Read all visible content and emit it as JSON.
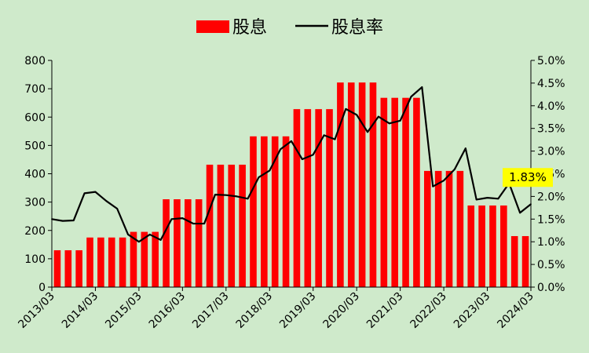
{
  "chart_data": {
    "type": "bar+line",
    "legend": {
      "bar_label": "股息",
      "line_label": "股息率",
      "position": "top-center"
    },
    "colors": {
      "background": "#cfeacb",
      "bar": "#ff0000",
      "line": "#000000",
      "annotation_bg": "#ffff00"
    },
    "y_left": {
      "ylim": [
        0,
        800
      ],
      "ticks": [
        "0",
        "100",
        "200",
        "300",
        "400",
        "500",
        "600",
        "700",
        "800"
      ]
    },
    "y_right": {
      "ylim": [
        0,
        5
      ],
      "ticks": [
        "0.0%",
        "0.5%",
        "1.0%",
        "1.5%",
        "2.0%",
        "2.5%",
        "3.0%",
        "3.5%",
        "4.0%",
        "4.5%",
        "5.0%"
      ]
    },
    "x_tick_labels": [
      "2013/03",
      "2014/03",
      "2015/03",
      "2016/03",
      "2017/03",
      "2018/03",
      "2019/03",
      "2020/03",
      "2021/03",
      "2022/03",
      "2023/03",
      "2024/03"
    ],
    "grid": false,
    "series": [
      {
        "name": "股息",
        "type": "bar",
        "values": [
          130,
          130,
          130,
          175,
          175,
          175,
          175,
          195,
          195,
          195,
          310,
          310,
          310,
          310,
          432,
          432,
          432,
          432,
          532,
          532,
          532,
          532,
          628,
          628,
          628,
          628,
          722,
          722,
          722,
          722,
          668,
          668,
          668,
          668,
          410,
          410,
          410,
          410,
          288,
          288,
          288,
          288,
          180,
          180
        ]
      },
      {
        "name": "股息率",
        "type": "line",
        "values": [
          1.5,
          1.46,
          1.47,
          2.07,
          2.1,
          1.9,
          1.73,
          1.16,
          1.0,
          1.16,
          1.04,
          1.5,
          1.52,
          1.4,
          1.4,
          2.04,
          2.03,
          2.0,
          1.95,
          2.42,
          2.57,
          3.04,
          3.22,
          2.82,
          2.92,
          3.35,
          3.26,
          3.93,
          3.8,
          3.42,
          3.76,
          3.61,
          3.67,
          4.2,
          4.41,
          2.22,
          2.35,
          2.6,
          3.06,
          1.93,
          1.97,
          1.95,
          2.29,
          1.64,
          1.83
        ]
      }
    ],
    "annotation": {
      "text": "1.83%"
    }
  }
}
